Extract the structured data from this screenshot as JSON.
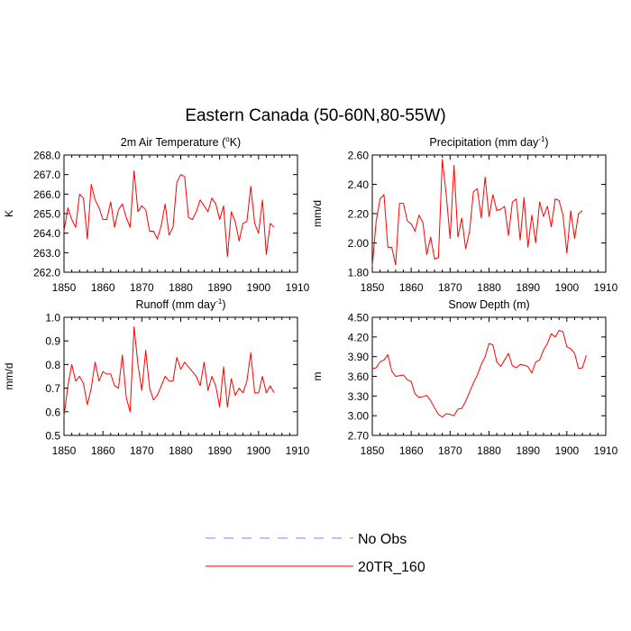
{
  "figure": {
    "title": "Eastern Canada (50-60N,80-55W)",
    "legend": {
      "placement": "bottom-center",
      "entries": [
        {
          "name": "No Obs",
          "color": "#8080ff",
          "dash": true
        },
        {
          "name": "20TR_160",
          "color": "#ff0000",
          "dash": false
        }
      ]
    }
  },
  "chart_data": [
    {
      "type": "line",
      "title_main": "2m Air Temperature (",
      "title_super": "o",
      "title_tail": "K)",
      "ylabel": "K",
      "xlim": [
        1850,
        1910
      ],
      "ylim": [
        262.0,
        268.0
      ],
      "xticks": [
        1850,
        1860,
        1870,
        1880,
        1890,
        1900,
        1910
      ],
      "yticks": [
        262.0,
        263.0,
        264.0,
        265.0,
        266.0,
        267.0,
        268.0
      ],
      "ytick_labels": [
        "262.0",
        "263.0",
        "264.0",
        "265.0",
        "266.0",
        "267.0",
        "268.0"
      ],
      "grid": false,
      "x_start": 1850,
      "series": [
        {
          "name": "20TR_160",
          "color": "#ff0000",
          "values": [
            264.1,
            265.3,
            264.7,
            264.3,
            266.0,
            265.8,
            263.7,
            266.5,
            265.7,
            265.3,
            264.7,
            264.7,
            265.6,
            264.3,
            265.2,
            265.5,
            264.8,
            264.3,
            267.2,
            265.1,
            265.4,
            265.2,
            264.1,
            264.1,
            263.7,
            264.4,
            265.5,
            263.9,
            264.3,
            266.6,
            267.0,
            266.9,
            264.8,
            264.7,
            265.1,
            265.7,
            265.4,
            265.1,
            265.8,
            265.5,
            264.7,
            265.4,
            262.8,
            265.1,
            264.6,
            263.6,
            264.5,
            264.6,
            266.4,
            264.5,
            264.0,
            265.7,
            262.9,
            264.5,
            264.3
          ]
        }
      ]
    },
    {
      "type": "line",
      "title_main": "Precipitation (mm day",
      "title_super": "-1",
      "title_tail": ")",
      "ylabel": "mm/d",
      "xlim": [
        1850,
        1910
      ],
      "ylim": [
        1.8,
        2.6
      ],
      "xticks": [
        1850,
        1860,
        1870,
        1880,
        1890,
        1900,
        1910
      ],
      "yticks": [
        1.8,
        2.0,
        2.2,
        2.4,
        2.6
      ],
      "ytick_labels": [
        "1.80",
        "2.00",
        "2.20",
        "2.40",
        "2.60"
      ],
      "grid": false,
      "x_start": 1850,
      "series": [
        {
          "name": "20TR_160",
          "color": "#ff0000",
          "values": [
            1.84,
            2.15,
            2.3,
            2.33,
            1.97,
            1.97,
            1.85,
            2.27,
            2.27,
            2.15,
            2.13,
            2.08,
            2.19,
            2.14,
            1.92,
            2.04,
            1.89,
            1.9,
            2.57,
            2.33,
            2.03,
            2.53,
            2.04,
            2.17,
            1.96,
            2.08,
            2.35,
            2.37,
            2.17,
            2.45,
            2.18,
            2.33,
            2.22,
            2.23,
            2.25,
            2.05,
            2.28,
            2.3,
            2.02,
            2.31,
            1.97,
            2.19,
            2.0,
            2.28,
            2.18,
            2.25,
            2.11,
            2.3,
            2.29,
            2.19,
            1.93,
            2.22,
            2.03,
            2.2,
            2.22
          ]
        }
      ]
    },
    {
      "type": "line",
      "title_main": "Runoff (mm day",
      "title_super": "-1",
      "title_tail": ")",
      "ylabel": "mm/d",
      "xlim": [
        1850,
        1910
      ],
      "ylim": [
        0.5,
        1.0
      ],
      "xticks": [
        1850,
        1860,
        1870,
        1880,
        1890,
        1900,
        1910
      ],
      "yticks": [
        0.5,
        0.6,
        0.7,
        0.8,
        0.9,
        1.0
      ],
      "ytick_labels": [
        "0.5",
        "0.6",
        "0.7",
        "0.8",
        "0.9",
        "1.0"
      ],
      "grid": false,
      "x_start": 1850,
      "series": [
        {
          "name": "20TR_160",
          "color": "#ff0000",
          "values": [
            0.58,
            0.71,
            0.8,
            0.73,
            0.75,
            0.72,
            0.63,
            0.7,
            0.81,
            0.73,
            0.77,
            0.76,
            0.76,
            0.71,
            0.7,
            0.84,
            0.66,
            0.6,
            0.96,
            0.8,
            0.69,
            0.86,
            0.7,
            0.65,
            0.67,
            0.71,
            0.75,
            0.73,
            0.73,
            0.83,
            0.78,
            0.81,
            0.79,
            0.77,
            0.75,
            0.71,
            0.81,
            0.69,
            0.75,
            0.71,
            0.62,
            0.79,
            0.62,
            0.74,
            0.67,
            0.7,
            0.68,
            0.73,
            0.85,
            0.68,
            0.68,
            0.75,
            0.68,
            0.71,
            0.68
          ]
        }
      ]
    },
    {
      "type": "line",
      "title_main": "Snow Depth (m)",
      "title_super": "",
      "title_tail": "",
      "ylabel": "m",
      "xlim": [
        1850,
        1910
      ],
      "ylim": [
        2.7,
        4.5
      ],
      "xticks": [
        1850,
        1860,
        1870,
        1880,
        1890,
        1900,
        1910
      ],
      "yticks": [
        2.7,
        3.0,
        3.3,
        3.6,
        3.9,
        4.2,
        4.5
      ],
      "ytick_labels": [
        "2.70",
        "3.00",
        "3.30",
        "3.60",
        "3.90",
        "4.20",
        "4.50"
      ],
      "grid": false,
      "x_start": 1850,
      "series": [
        {
          "name": "20TR_160",
          "color": "#ff0000",
          "values": [
            3.72,
            3.73,
            3.82,
            3.85,
            3.93,
            3.68,
            3.6,
            3.61,
            3.62,
            3.55,
            3.52,
            3.33,
            3.28,
            3.29,
            3.31,
            3.23,
            3.12,
            3.02,
            2.98,
            3.03,
            3.02,
            3.0,
            3.1,
            3.11,
            3.22,
            3.36,
            3.5,
            3.62,
            3.78,
            3.9,
            4.1,
            4.08,
            3.82,
            3.75,
            3.85,
            3.95,
            3.76,
            3.73,
            3.78,
            3.77,
            3.75,
            3.65,
            3.82,
            3.85,
            4.0,
            4.1,
            4.25,
            4.2,
            4.3,
            4.28,
            4.05,
            4.02,
            3.95,
            3.72,
            3.73,
            3.92
          ]
        }
      ]
    }
  ]
}
